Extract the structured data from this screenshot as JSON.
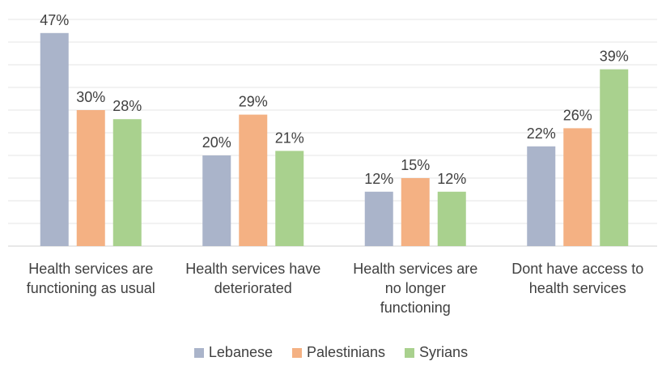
{
  "chart_data": {
    "type": "bar",
    "categories": [
      "Health services are\nfunctioning as usual",
      "Health services have\ndeteriorated",
      "Health services are\nno longer\nfunctioning",
      "Dont have access to\nhealth services"
    ],
    "series": [
      {
        "name": "Lebanese",
        "values": [
          47,
          20,
          12,
          22
        ],
        "color": "#AAB4CA",
        "labels": [
          "47%",
          "20%",
          "12%",
          "22%"
        ]
      },
      {
        "name": "Palestinians",
        "values": [
          30,
          29,
          15,
          26
        ],
        "color": "#F4B183",
        "labels": [
          "30%",
          "29%",
          "15%",
          "26%"
        ]
      },
      {
        "name": "Syrians",
        "values": [
          28,
          21,
          12,
          39
        ],
        "color": "#A9D18E",
        "labels": [
          "28%",
          "21%",
          "12%",
          "39%"
        ]
      }
    ],
    "ylim": [
      0,
      50
    ],
    "grid": true,
    "legend_position": "bottom"
  }
}
